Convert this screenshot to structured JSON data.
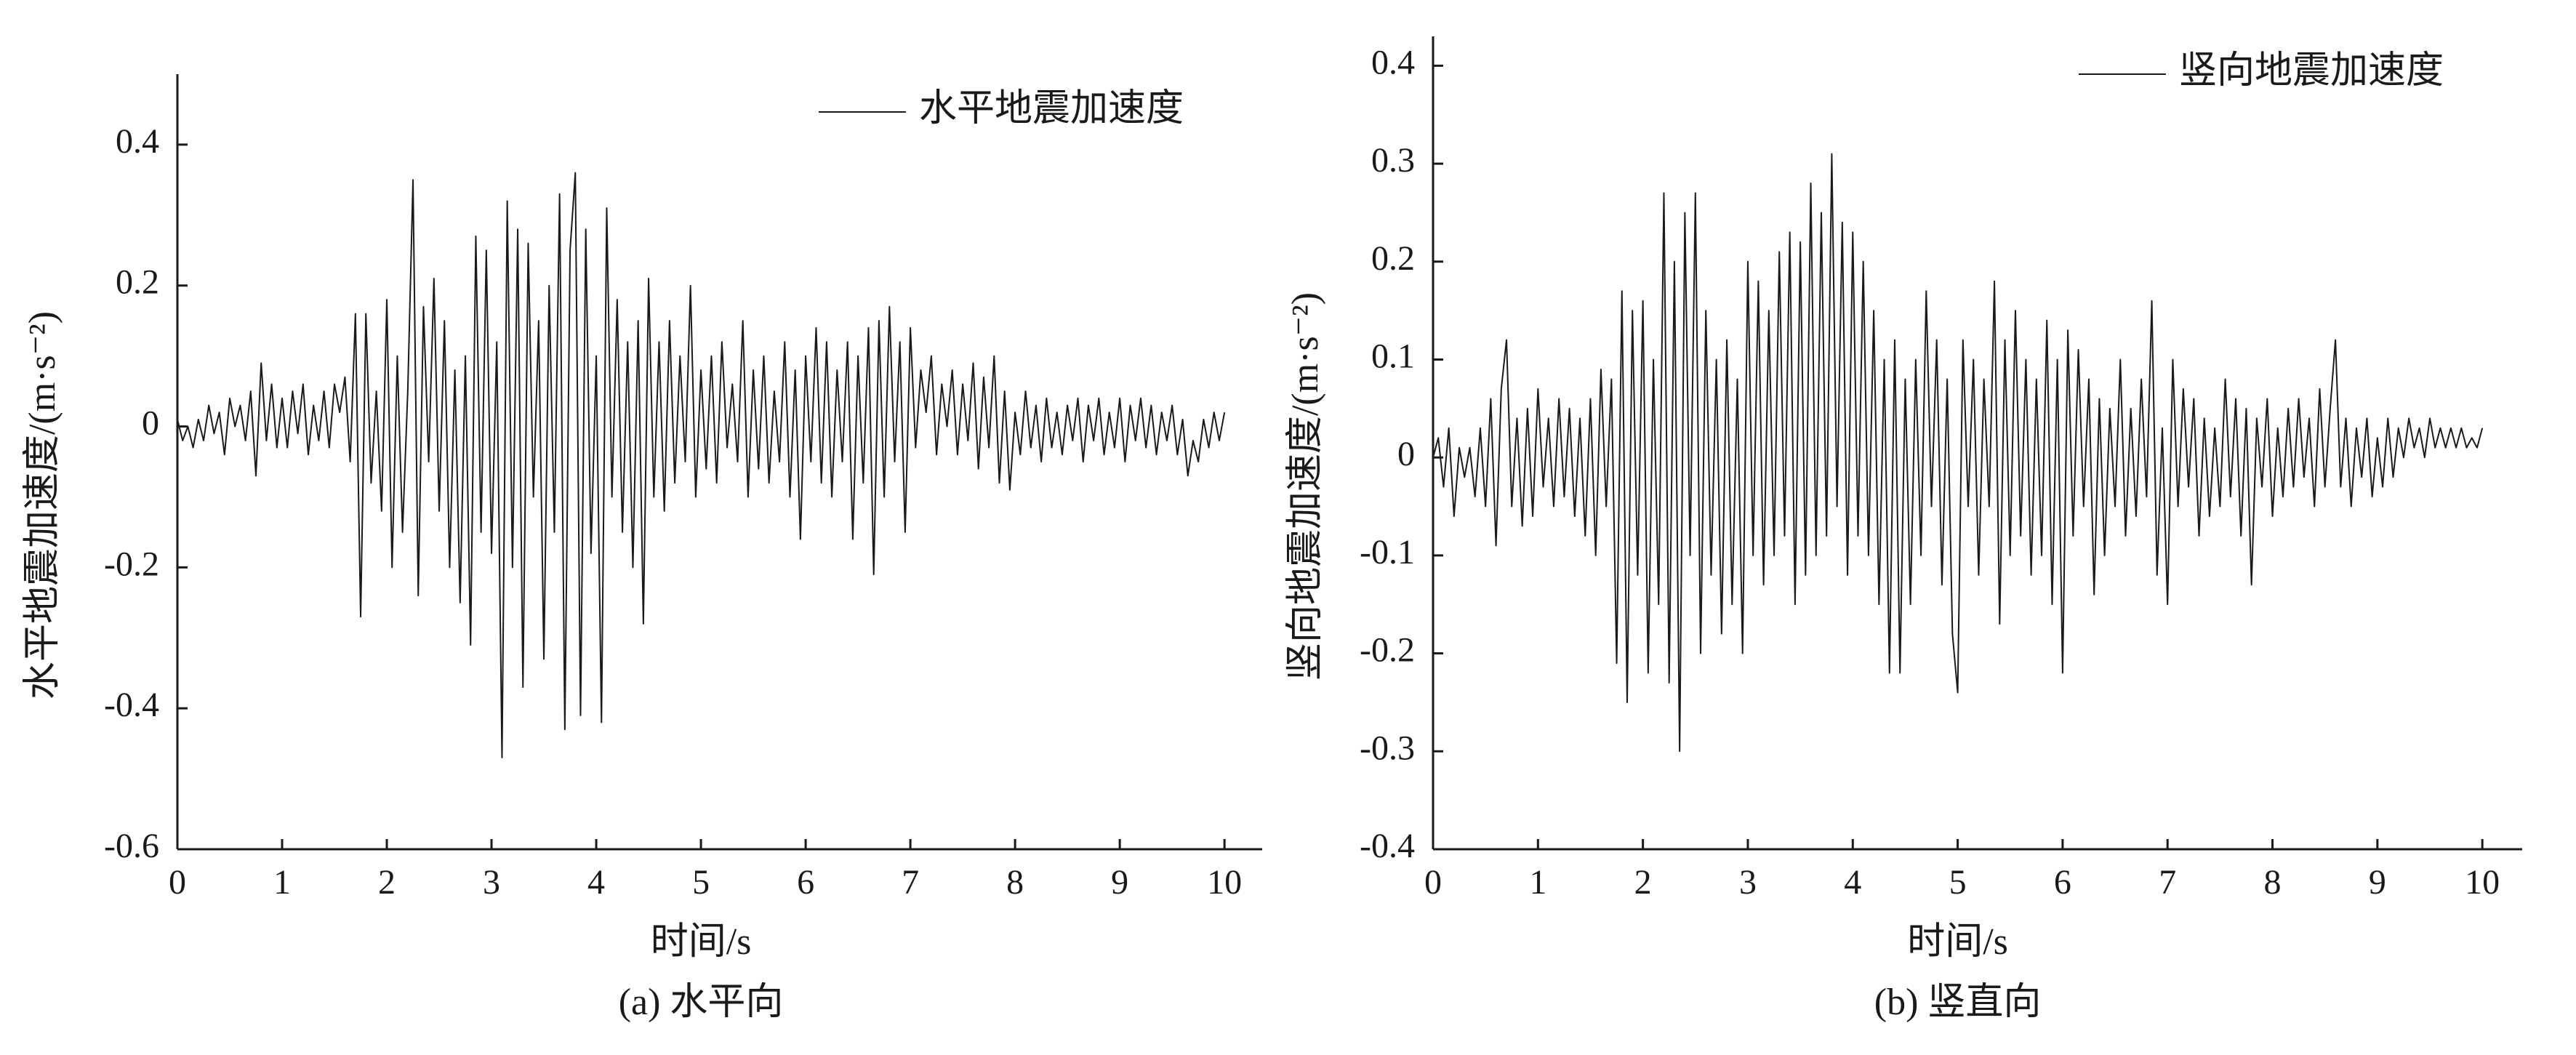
{
  "chart_data": [
    {
      "type": "line",
      "caption": "(a) 水平向",
      "xlabel": "时间/s",
      "ylabel": "水平地震加速度/(m·s⁻²)",
      "legend": "upper right",
      "xlim": [
        0,
        10.36
      ],
      "ylim": [
        -0.6,
        0.5
      ],
      "xticks": [
        0,
        1,
        2,
        3,
        4,
        5,
        6,
        7,
        8,
        9,
        10
      ],
      "yticks": [
        -0.6,
        -0.4,
        -0.2,
        0,
        0.2,
        0.4
      ],
      "x": [
        0,
        0.05,
        0.1,
        0.15,
        0.2,
        0.25,
        0.3,
        0.35,
        0.4,
        0.45,
        0.5,
        0.55,
        0.6,
        0.65,
        0.7,
        0.75,
        0.8,
        0.85,
        0.9,
        0.95,
        1,
        1.05,
        1.1,
        1.15,
        1.2,
        1.25,
        1.3,
        1.35,
        1.4,
        1.45,
        1.5,
        1.55,
        1.6,
        1.65,
        1.7,
        1.75,
        1.8,
        1.85,
        1.9,
        1.95,
        2,
        2.05,
        2.1,
        2.15,
        2.2,
        2.25,
        2.3,
        2.35,
        2.4,
        2.45,
        2.5,
        2.55,
        2.6,
        2.65,
        2.7,
        2.75,
        2.8,
        2.85,
        2.9,
        2.95,
        3,
        3.05,
        3.1,
        3.15,
        3.2,
        3.25,
        3.3,
        3.35,
        3.4,
        3.45,
        3.5,
        3.55,
        3.6,
        3.65,
        3.7,
        3.75,
        3.8,
        3.85,
        3.9,
        3.95,
        4,
        4.05,
        4.1,
        4.15,
        4.2,
        4.25,
        4.3,
        4.35,
        4.4,
        4.45,
        4.5,
        4.55,
        4.6,
        4.65,
        4.7,
        4.75,
        4.8,
        4.85,
        4.9,
        4.95,
        5,
        5.05,
        5.1,
        5.15,
        5.2,
        5.25,
        5.3,
        5.35,
        5.4,
        5.45,
        5.5,
        5.55,
        5.6,
        5.65,
        5.7,
        5.75,
        5.8,
        5.85,
        5.9,
        5.95,
        6,
        6.05,
        6.1,
        6.15,
        6.2,
        6.25,
        6.3,
        6.35,
        6.4,
        6.45,
        6.5,
        6.55,
        6.6,
        6.65,
        6.7,
        6.75,
        6.8,
        6.85,
        6.9,
        6.95,
        7,
        7.05,
        7.1,
        7.15,
        7.2,
        7.25,
        7.3,
        7.35,
        7.4,
        7.45,
        7.5,
        7.55,
        7.6,
        7.65,
        7.7,
        7.75,
        7.8,
        7.85,
        7.9,
        7.95,
        8,
        8.05,
        8.1,
        8.15,
        8.2,
        8.25,
        8.3,
        8.35,
        8.4,
        8.45,
        8.5,
        8.55,
        8.6,
        8.65,
        8.7,
        8.75,
        8.8,
        8.85,
        8.9,
        8.95,
        9,
        9.05,
        9.1,
        9.15,
        9.2,
        9.25,
        9.3,
        9.35,
        9.4,
        9.45,
        9.5,
        9.55,
        9.6,
        9.65,
        9.7,
        9.75,
        9.8,
        9.85,
        9.9,
        9.95,
        10
      ],
      "series": [
        {
          "name": "水平地震加速度",
          "color": "#1a1a1a",
          "values": [
            0.01,
            -0.02,
            0.0,
            -0.03,
            0.01,
            -0.02,
            0.03,
            -0.01,
            0.02,
            -0.04,
            0.04,
            0.0,
            0.03,
            -0.02,
            0.05,
            -0.07,
            0.09,
            -0.02,
            0.06,
            -0.03,
            0.04,
            -0.03,
            0.05,
            -0.01,
            0.06,
            -0.04,
            0.03,
            -0.02,
            0.05,
            -0.03,
            0.06,
            0.02,
            0.07,
            -0.05,
            0.16,
            -0.27,
            0.16,
            -0.08,
            0.05,
            -0.12,
            0.18,
            -0.2,
            0.1,
            -0.15,
            0.05,
            0.35,
            -0.24,
            0.17,
            -0.05,
            0.21,
            -0.12,
            0.15,
            -0.2,
            0.08,
            -0.25,
            0.1,
            -0.31,
            0.27,
            -0.15,
            0.25,
            -0.18,
            0.12,
            -0.47,
            0.32,
            -0.2,
            0.28,
            -0.37,
            0.26,
            -0.1,
            0.15,
            -0.33,
            0.2,
            -0.15,
            0.33,
            -0.43,
            0.25,
            0.36,
            -0.41,
            0.28,
            -0.18,
            0.1,
            -0.42,
            0.31,
            -0.1,
            0.18,
            -0.15,
            0.12,
            -0.2,
            0.15,
            -0.28,
            0.21,
            -0.1,
            0.12,
            -0.12,
            0.15,
            -0.08,
            0.1,
            -0.05,
            0.2,
            -0.1,
            0.08,
            -0.06,
            0.1,
            -0.08,
            0.12,
            -0.03,
            0.06,
            -0.05,
            0.15,
            -0.1,
            0.08,
            -0.06,
            0.1,
            -0.08,
            0.05,
            -0.05,
            0.12,
            -0.1,
            0.08,
            -0.16,
            0.1,
            -0.05,
            0.14,
            -0.08,
            0.12,
            -0.1,
            0.08,
            -0.05,
            0.12,
            -0.16,
            0.1,
            -0.08,
            0.14,
            -0.21,
            0.15,
            -0.1,
            0.17,
            -0.05,
            0.12,
            -0.15,
            0.14,
            -0.03,
            0.08,
            0.02,
            0.1,
            -0.04,
            0.06,
            0.0,
            0.08,
            -0.04,
            0.06,
            -0.02,
            0.09,
            -0.06,
            0.07,
            -0.03,
            0.1,
            -0.08,
            0.05,
            -0.09,
            0.02,
            -0.04,
            0.05,
            -0.03,
            0.03,
            -0.05,
            0.04,
            -0.03,
            0.02,
            -0.04,
            0.03,
            -0.02,
            0.04,
            -0.05,
            0.03,
            -0.02,
            0.04,
            -0.04,
            0.02,
            -0.03,
            0.04,
            -0.05,
            0.03,
            -0.02,
            0.04,
            -0.03,
            0.03,
            -0.04,
            0.02,
            -0.02,
            0.03,
            -0.04,
            0.01,
            -0.07,
            -0.02,
            -0.05,
            0.01,
            -0.03,
            0.02,
            -0.02,
            0.02
          ]
        }
      ]
    },
    {
      "type": "line",
      "caption": "(b) 竖直向",
      "xlabel": "时间/s",
      "ylabel": "竖向地震加速度/(m·s⁻²)",
      "legend": "upper right",
      "xlim": [
        0,
        10.38
      ],
      "ylim": [
        -0.4,
        0.43
      ],
      "xticks": [
        0,
        1,
        2,
        3,
        4,
        5,
        6,
        7,
        8,
        9,
        10
      ],
      "yticks": [
        -0.4,
        -0.3,
        -0.2,
        -0.1,
        0,
        0.1,
        0.2,
        0.3,
        0.4
      ],
      "x": [
        0,
        0.05,
        0.1,
        0.15,
        0.2,
        0.25,
        0.3,
        0.35,
        0.4,
        0.45,
        0.5,
        0.55,
        0.6,
        0.65,
        0.7,
        0.75,
        0.8,
        0.85,
        0.9,
        0.95,
        1,
        1.05,
        1.1,
        1.15,
        1.2,
        1.25,
        1.3,
        1.35,
        1.4,
        1.45,
        1.5,
        1.55,
        1.6,
        1.65,
        1.7,
        1.75,
        1.8,
        1.85,
        1.9,
        1.95,
        2,
        2.05,
        2.1,
        2.15,
        2.2,
        2.25,
        2.3,
        2.35,
        2.4,
        2.45,
        2.5,
        2.55,
        2.6,
        2.65,
        2.7,
        2.75,
        2.8,
        2.85,
        2.9,
        2.95,
        3,
        3.05,
        3.1,
        3.15,
        3.2,
        3.25,
        3.3,
        3.35,
        3.4,
        3.45,
        3.5,
        3.55,
        3.6,
        3.65,
        3.7,
        3.75,
        3.8,
        3.85,
        3.9,
        3.95,
        4,
        4.05,
        4.1,
        4.15,
        4.2,
        4.25,
        4.3,
        4.35,
        4.4,
        4.45,
        4.5,
        4.55,
        4.6,
        4.65,
        4.7,
        4.75,
        4.8,
        4.85,
        4.9,
        4.95,
        5,
        5.05,
        5.1,
        5.15,
        5.2,
        5.25,
        5.3,
        5.35,
        5.4,
        5.45,
        5.5,
        5.55,
        5.6,
        5.65,
        5.7,
        5.75,
        5.8,
        5.85,
        5.9,
        5.95,
        6,
        6.05,
        6.1,
        6.15,
        6.2,
        6.25,
        6.3,
        6.35,
        6.4,
        6.45,
        6.5,
        6.55,
        6.6,
        6.65,
        6.7,
        6.75,
        6.8,
        6.85,
        6.9,
        6.95,
        7,
        7.05,
        7.1,
        7.15,
        7.2,
        7.25,
        7.3,
        7.35,
        7.4,
        7.45,
        7.5,
        7.55,
        7.6,
        7.65,
        7.7,
        7.75,
        7.8,
        7.85,
        7.9,
        7.95,
        8,
        8.05,
        8.1,
        8.15,
        8.2,
        8.25,
        8.3,
        8.35,
        8.4,
        8.45,
        8.5,
        8.55,
        8.6,
        8.65,
        8.7,
        8.75,
        8.8,
        8.85,
        8.9,
        8.95,
        9,
        9.05,
        9.1,
        9.15,
        9.2,
        9.25,
        9.3,
        9.35,
        9.4,
        9.45,
        9.5,
        9.55,
        9.6,
        9.65,
        9.7,
        9.75,
        9.8,
        9.85,
        9.9,
        9.95,
        10
      ],
      "series": [
        {
          "name": "竖向地震加速度",
          "color": "#1a1a1a",
          "values": [
            0.0,
            0.02,
            -0.03,
            0.03,
            -0.06,
            0.01,
            -0.02,
            0.01,
            -0.04,
            0.03,
            -0.05,
            0.06,
            -0.09,
            0.07,
            0.12,
            -0.05,
            0.04,
            -0.07,
            0.05,
            -0.06,
            0.07,
            -0.03,
            0.04,
            -0.05,
            0.06,
            -0.04,
            0.05,
            -0.06,
            0.04,
            -0.08,
            0.06,
            -0.1,
            0.09,
            -0.05,
            0.08,
            -0.21,
            0.17,
            -0.25,
            0.15,
            -0.12,
            0.16,
            -0.22,
            0.1,
            -0.15,
            0.27,
            -0.23,
            0.2,
            -0.3,
            0.25,
            -0.1,
            0.27,
            -0.2,
            0.15,
            -0.12,
            0.1,
            -0.18,
            0.12,
            -0.15,
            0.08,
            -0.2,
            0.2,
            -0.1,
            0.18,
            -0.13,
            0.15,
            -0.1,
            0.21,
            -0.08,
            0.23,
            -0.15,
            0.22,
            -0.12,
            0.28,
            -0.1,
            0.25,
            -0.08,
            0.31,
            -0.05,
            0.24,
            -0.12,
            0.23,
            -0.08,
            0.2,
            -0.1,
            0.15,
            -0.15,
            0.1,
            -0.22,
            0.12,
            -0.22,
            0.08,
            -0.15,
            0.1,
            -0.1,
            0.17,
            -0.05,
            0.12,
            -0.13,
            0.08,
            -0.18,
            -0.24,
            0.12,
            -0.05,
            0.1,
            -0.12,
            0.08,
            -0.05,
            0.18,
            -0.17,
            0.12,
            -0.1,
            0.15,
            -0.08,
            0.1,
            -0.12,
            0.08,
            -0.1,
            0.14,
            -0.15,
            0.1,
            -0.22,
            0.13,
            -0.08,
            0.11,
            -0.05,
            0.08,
            -0.14,
            0.06,
            -0.1,
            0.05,
            -0.05,
            0.1,
            -0.08,
            0.05,
            -0.06,
            0.08,
            -0.04,
            0.16,
            -0.12,
            0.03,
            -0.15,
            0.1,
            -0.05,
            0.07,
            -0.03,
            0.06,
            -0.08,
            0.04,
            -0.06,
            0.03,
            -0.05,
            0.08,
            -0.04,
            0.06,
            -0.08,
            0.05,
            -0.13,
            0.04,
            -0.03,
            0.06,
            -0.06,
            0.03,
            -0.04,
            0.05,
            -0.03,
            0.06,
            -0.02,
            0.04,
            -0.05,
            0.07,
            -0.03,
            0.05,
            0.12,
            -0.03,
            0.04,
            -0.05,
            0.03,
            -0.02,
            0.04,
            -0.04,
            0.02,
            -0.03,
            0.04,
            -0.02,
            0.03,
            0.0,
            0.04,
            0.01,
            0.03,
            0.0,
            0.04,
            0.01,
            0.03,
            0.01,
            0.03,
            0.01,
            0.03,
            0.01,
            0.02,
            0.01,
            0.03
          ]
        }
      ]
    }
  ]
}
